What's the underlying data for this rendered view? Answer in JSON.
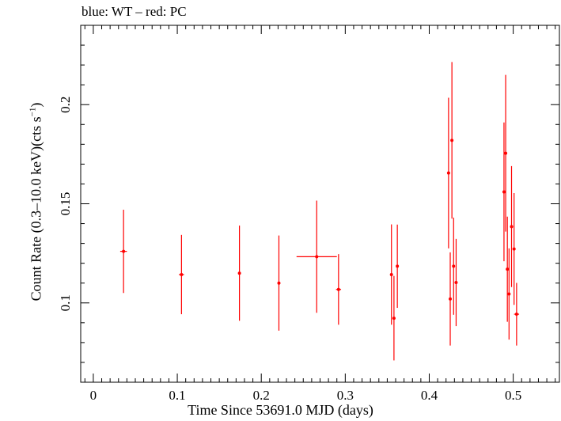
{
  "chart_data": {
    "type": "scatter",
    "title": "blue: WT – red: PC",
    "xlabel": "Time Since 53691.0 MJD (days)",
    "ylabel": {
      "main": "Count Rate (0.3–10.0 keV)(cts s",
      "sup": "−1",
      "tail": ")"
    },
    "xlim": [
      -0.015,
      0.555
    ],
    "ylim": [
      0.06,
      0.24
    ],
    "xticks": [
      {
        "value": 0,
        "label": "0"
      },
      {
        "value": 0.1,
        "label": "0.1"
      },
      {
        "value": 0.2,
        "label": "0.2"
      },
      {
        "value": 0.3,
        "label": "0.3"
      },
      {
        "value": 0.4,
        "label": "0.4"
      },
      {
        "value": 0.5,
        "label": "0.5"
      }
    ],
    "yticks": [
      {
        "value": 0.1,
        "label": "0.1"
      },
      {
        "value": 0.15,
        "label": "0.15"
      },
      {
        "value": 0.2,
        "label": "0.2"
      }
    ],
    "colors": {
      "PC": "#ff0000",
      "WT": "#0000ff",
      "axes": "#000000"
    },
    "series": [
      {
        "name": "PC",
        "points": [
          {
            "x": 0.036,
            "y": 0.126,
            "xerr": 0.004,
            "yerr_lo": 0.021,
            "yerr_hi": 0.021
          },
          {
            "x": 0.105,
            "y": 0.1143,
            "xerr": 0.003,
            "yerr_lo": 0.02,
            "yerr_hi": 0.02
          },
          {
            "x": 0.174,
            "y": 0.115,
            "xerr": 0.0015,
            "yerr_lo": 0.024,
            "yerr_hi": 0.024
          },
          {
            "x": 0.221,
            "y": 0.11,
            "xerr": 0.0015,
            "yerr_lo": 0.024,
            "yerr_hi": 0.024
          },
          {
            "x": 0.266,
            "y": 0.1233,
            "xerr": 0.024,
            "yerr_lo": 0.0283,
            "yerr_hi": 0.0283
          },
          {
            "x": 0.292,
            "y": 0.1068,
            "xerr": 0.003,
            "yerr_lo": 0.0178,
            "yerr_hi": 0.0178
          },
          {
            "x": 0.355,
            "y": 0.1143,
            "xerr": 0.001,
            "yerr_lo": 0.0253,
            "yerr_hi": 0.0253
          },
          {
            "x": 0.358,
            "y": 0.0923,
            "xerr": 0.001,
            "yerr_lo": 0.0213,
            "yerr_hi": 0.0213
          },
          {
            "x": 0.362,
            "y": 0.1185,
            "xerr": 0.001,
            "yerr_lo": 0.021,
            "yerr_hi": 0.021
          },
          {
            "x": 0.423,
            "y": 0.1655,
            "xerr": 0.001,
            "yerr_lo": 0.038,
            "yerr_hi": 0.038
          },
          {
            "x": 0.425,
            "y": 0.102,
            "xerr": 0.001,
            "yerr_lo": 0.0235,
            "yerr_hi": 0.0235
          },
          {
            "x": 0.427,
            "y": 0.182,
            "xerr": 0.001,
            "yerr_lo": 0.0395,
            "yerr_hi": 0.0395
          },
          {
            "x": 0.429,
            "y": 0.1185,
            "xerr": 0.001,
            "yerr_lo": 0.0245,
            "yerr_hi": 0.0245
          },
          {
            "x": 0.432,
            "y": 0.1103,
            "xerr": 0.001,
            "yerr_lo": 0.022,
            "yerr_hi": 0.022
          },
          {
            "x": 0.489,
            "y": 0.156,
            "xerr": 0.001,
            "yerr_lo": 0.035,
            "yerr_hi": 0.035
          },
          {
            "x": 0.491,
            "y": 0.1755,
            "xerr": 0.001,
            "yerr_lo": 0.0395,
            "yerr_hi": 0.0395
          },
          {
            "x": 0.493,
            "y": 0.117,
            "xerr": 0.001,
            "yerr_lo": 0.0265,
            "yerr_hi": 0.0265
          },
          {
            "x": 0.495,
            "y": 0.1045,
            "xerr": 0.001,
            "yerr_lo": 0.023,
            "yerr_hi": 0.023
          },
          {
            "x": 0.498,
            "y": 0.1385,
            "xerr": 0.001,
            "yerr_lo": 0.0305,
            "yerr_hi": 0.0305
          },
          {
            "x": 0.501,
            "y": 0.1272,
            "xerr": 0.001,
            "yerr_lo": 0.0282,
            "yerr_hi": 0.0282
          },
          {
            "x": 0.504,
            "y": 0.0943,
            "xerr": 0.003,
            "yerr_lo": 0.0158,
            "yerr_hi": 0.0158
          }
        ]
      }
    ]
  }
}
